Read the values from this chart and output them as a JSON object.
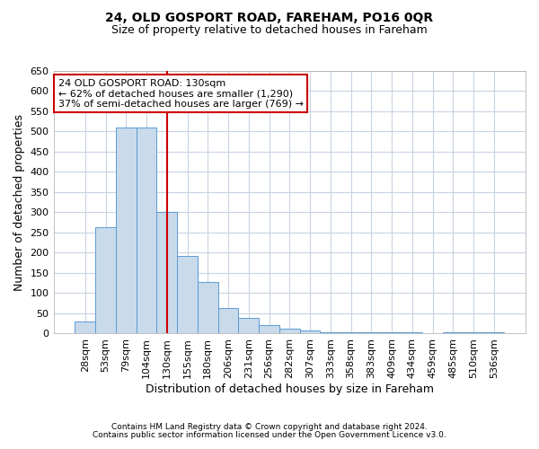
{
  "title1": "24, OLD GOSPORT ROAD, FAREHAM, PO16 0QR",
  "title2": "Size of property relative to detached houses in Fareham",
  "xlabel": "Distribution of detached houses by size in Fareham",
  "ylabel": "Number of detached properties",
  "categories": [
    "28sqm",
    "53sqm",
    "79sqm",
    "104sqm",
    "130sqm",
    "155sqm",
    "180sqm",
    "206sqm",
    "231sqm",
    "256sqm",
    "282sqm",
    "307sqm",
    "333sqm",
    "358sqm",
    "383sqm",
    "409sqm",
    "434sqm",
    "459sqm",
    "485sqm",
    "510sqm",
    "536sqm"
  ],
  "values": [
    30,
    263,
    510,
    510,
    302,
    193,
    128,
    63,
    38,
    20,
    13,
    8,
    3,
    3,
    3,
    3,
    3,
    0,
    3,
    3,
    3
  ],
  "bar_color": "#c9daea",
  "bar_edge_color": "#5b9bd5",
  "ref_line_index": 4,
  "ref_line_color": "#cc0000",
  "annotation_text": "24 OLD GOSPORT ROAD: 130sqm\n← 62% of detached houses are smaller (1,290)\n37% of semi-detached houses are larger (769) →",
  "annotation_box_color": "#cc0000",
  "ylim": [
    0,
    650
  ],
  "yticks": [
    0,
    50,
    100,
    150,
    200,
    250,
    300,
    350,
    400,
    450,
    500,
    550,
    600,
    650
  ],
  "footnote1": "Contains HM Land Registry data © Crown copyright and database right 2024.",
  "footnote2": "Contains public sector information licensed under the Open Government Licence v3.0.",
  "background_color": "#ffffff",
  "grid_color": "#c8d4e3",
  "title1_fontsize": 10,
  "title2_fontsize": 9,
  "annotation_fontsize": 8,
  "axis_label_fontsize": 9,
  "tick_fontsize": 8,
  "footnote_fontsize": 6.5
}
